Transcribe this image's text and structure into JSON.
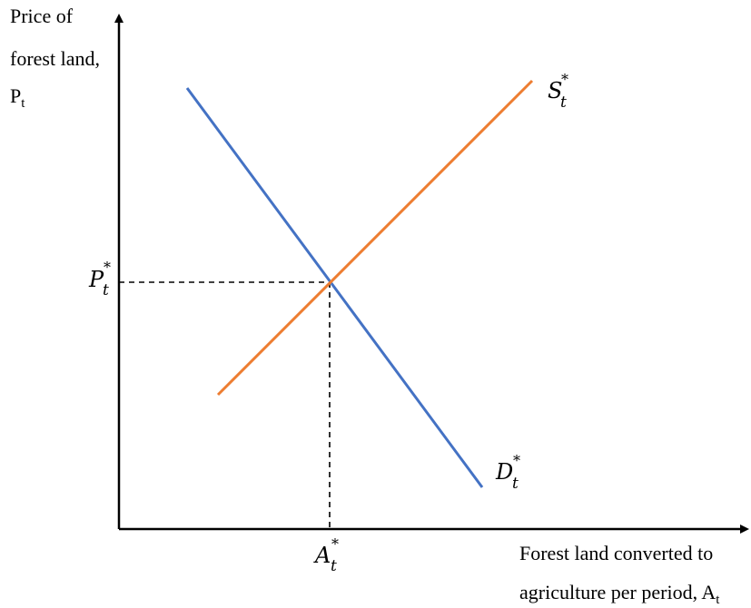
{
  "y_axis_label": {
    "line1": "Price of",
    "line2": "forest land,",
    "line3_main": "P",
    "line3_sub": "t"
  },
  "x_axis_label": {
    "line1": "Forest land converted to",
    "line2_main": "agriculture per period, A",
    "line2_sub": "t"
  },
  "price_marker": {
    "main": "P",
    "sup": "*",
    "sub": "t"
  },
  "quantity_marker": {
    "main": "A",
    "sup": "*",
    "sub": "t"
  },
  "supply_label": {
    "main": "S",
    "sup": "*",
    "sub": "t"
  },
  "demand_label": {
    "main": "D",
    "sup": "*",
    "sub": "t"
  },
  "colors": {
    "supply": "#ED7D31",
    "demand": "#4472C4",
    "axes": "#000000"
  }
}
